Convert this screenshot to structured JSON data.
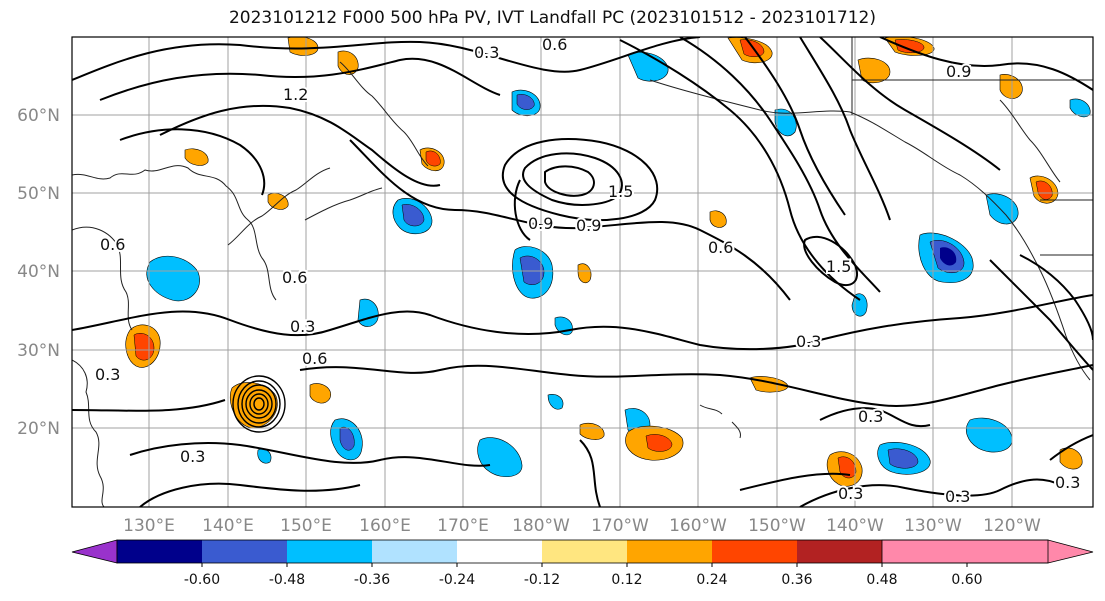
{
  "title": "2023101212 F000 500 hPa PV, IVT Landfall PC (2023101512 - 2023101712)",
  "lat_labels": [
    "60°N",
    "50°N",
    "40°N",
    "30°N",
    "20°N"
  ],
  "lon_labels": [
    "130°E",
    "140°E",
    "150°E",
    "160°E",
    "170°E",
    "180°W",
    "170°W",
    "160°W",
    "150°W",
    "140°W",
    "130°W",
    "120°W"
  ],
  "colorbar": {
    "colors": [
      "#9932cc",
      "#00008b",
      "#3a5bd0",
      "#00bfff",
      "#b0e2ff",
      "#ffffff",
      "#ffe680",
      "#ffa500",
      "#ff4500",
      "#b22222",
      "#ff88aa"
    ],
    "tick_labels": [
      "-0.60",
      "-0.48",
      "-0.36",
      "-0.24",
      "-0.12",
      "0.12",
      "0.24",
      "0.36",
      "0.48",
      "0.60"
    ]
  },
  "contour_labels": [
    "0.3",
    "0.6",
    "0.9",
    "1.2",
    "1.5",
    "0.3",
    "0.6",
    "0.9",
    "0.6",
    "0.3",
    "0.3",
    "0.3",
    "0.6",
    "1.5",
    "0.9",
    "0.6",
    "0.3",
    "0.3",
    "0.3",
    "0.3"
  ]
}
